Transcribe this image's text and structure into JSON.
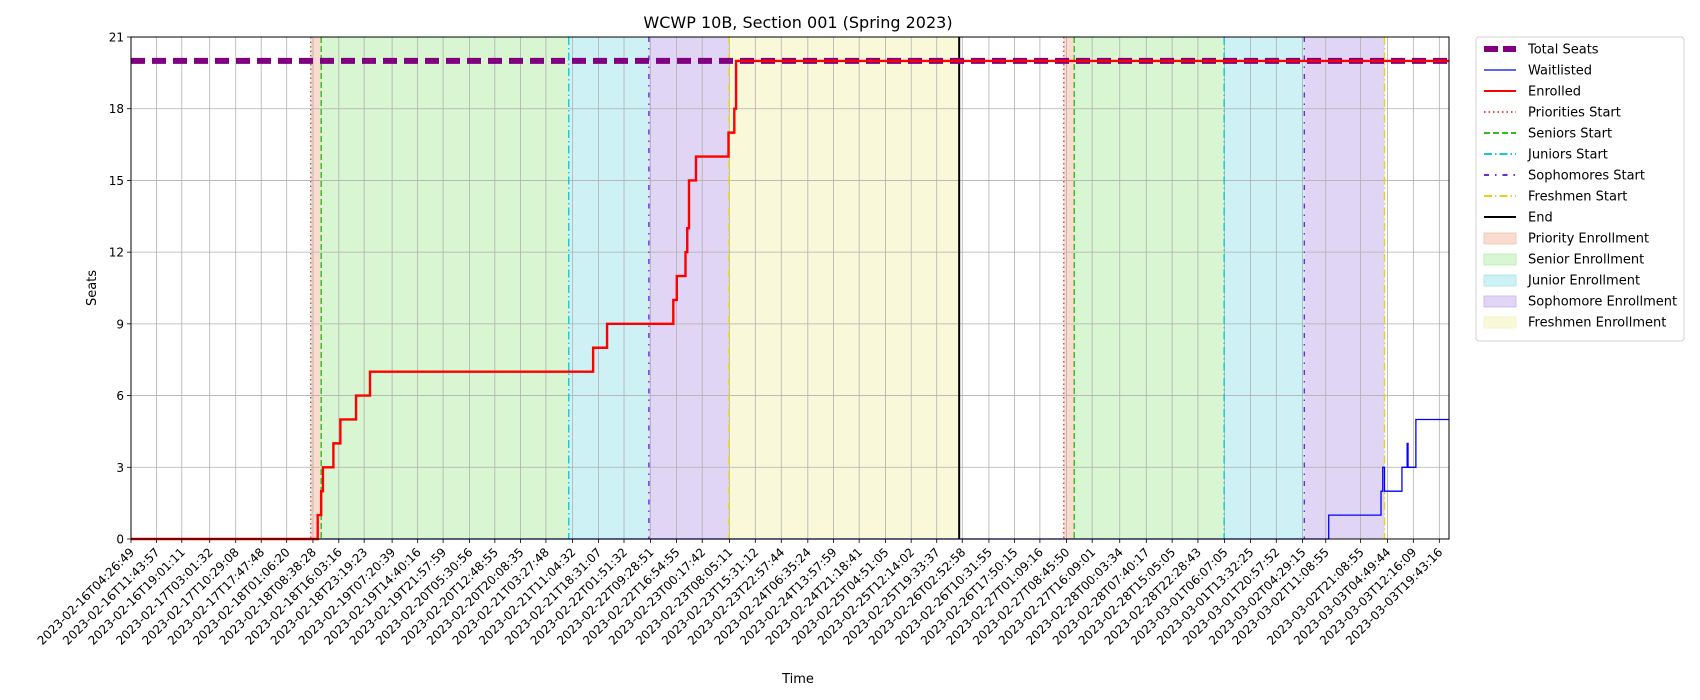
{
  "chart_data": {
    "type": "line",
    "title": "WCWP 10B, Section 001 (Spring 2023)",
    "xlabel": "Time",
    "ylabel": "Seats",
    "ylim": [
      0,
      21
    ],
    "yticks": [
      0,
      3,
      6,
      9,
      12,
      15,
      18,
      21
    ],
    "grid": true,
    "legend_position": "outside right, top",
    "xlim": [
      "2023-02-16T04:26:49",
      "2023-03-03T22:30:00"
    ],
    "x_tick_labels": [
      "2023-02-16T04:26:49",
      "2023-02-16T11:43:57",
      "2023-02-16T19:01:11",
      "2023-02-17T03:01:32",
      "2023-02-17T10:29:08",
      "2023-02-17T17:47:48",
      "2023-02-18T01:06:20",
      "2023-02-18T08:38:28",
      "2023-02-18T16:03:16",
      "2023-02-18T23:19:23",
      "2023-02-19T07:20:39",
      "2023-02-19T14:40:16",
      "2023-02-19T21:57:59",
      "2023-02-20T05:30:56",
      "2023-02-20T12:48:55",
      "2023-02-20T20:08:35",
      "2023-02-21T03:27:48",
      "2023-02-21T11:04:32",
      "2023-02-21T18:31:07",
      "2023-02-22T01:51:32",
      "2023-02-22T09:28:51",
      "2023-02-22T16:54:55",
      "2023-02-23T00:17:42",
      "2023-02-23T08:05:11",
      "2023-02-23T15:31:12",
      "2023-02-23T22:57:44",
      "2023-02-24T06:35:24",
      "2023-02-24T13:57:59",
      "2023-02-24T21:18:41",
      "2023-02-25T04:51:05",
      "2023-02-25T12:14:02",
      "2023-02-25T19:33:37",
      "2023-02-26T02:52:58",
      "2023-02-26T10:31:55",
      "2023-02-26T17:50:15",
      "2023-02-27T01:09:16",
      "2023-02-27T08:45:50",
      "2023-02-27T16:09:01",
      "2023-02-28T00:03:34",
      "2023-02-28T07:40:17",
      "2023-02-28T15:05:05",
      "2023-02-28T22:28:43",
      "2023-03-01T06:07:05",
      "2023-03-01T13:32:25",
      "2023-03-01T20:57:52",
      "2023-03-02T04:29:15",
      "2023-03-02T11:08:55",
      "2023-03-02T21:08:55",
      "2023-03-03T04:49:44",
      "2023-03-03T12:16:09",
      "2023-03-03T19:43:16"
    ],
    "spans": [
      {
        "name": "Priority Enrollment",
        "color": "#f4c0a8",
        "from": "2023-02-18T08:00:00",
        "to": "2023-02-18T11:00:00"
      },
      {
        "name": "Senior Enrollment",
        "color": "#b8eeac",
        "from": "2023-02-18T11:00:00",
        "to": "2023-02-21T10:00:00"
      },
      {
        "name": "Junior Enrollment",
        "color": "#a6e6ec",
        "from": "2023-02-21T10:00:00",
        "to": "2023-02-22T09:00:00"
      },
      {
        "name": "Sophomore Enrollment",
        "color": "#c9b2ec",
        "from": "2023-02-22T09:00:00",
        "to": "2023-02-23T08:00:00"
      },
      {
        "name": "Freshmen Enrollment",
        "color": "#f4f4bc",
        "from": "2023-02-23T08:00:00",
        "to": "2023-02-26T02:00:00"
      },
      {
        "name": "Priority Enrollment",
        "color": "#f4c0a8",
        "from": "2023-02-27T08:00:00",
        "to": "2023-02-27T11:00:00"
      },
      {
        "name": "Senior Enrollment",
        "color": "#b8eeac",
        "from": "2023-02-27T11:00:00",
        "to": "2023-03-01T06:00:00"
      },
      {
        "name": "Junior Enrollment",
        "color": "#a6e6ec",
        "from": "2023-03-01T06:00:00",
        "to": "2023-03-02T05:00:00"
      },
      {
        "name": "Sophomore Enrollment",
        "color": "#c9b2ec",
        "from": "2023-03-02T05:00:00",
        "to": "2023-03-03T04:00:00"
      }
    ],
    "vlines": [
      {
        "name": "Priorities Start",
        "color": "#e8463a",
        "style": "dotted",
        "x": "2023-02-18T08:00:00"
      },
      {
        "name": "Seniors Start",
        "color": "#33bb22",
        "style": "dashed",
        "x": "2023-02-18T11:00:00"
      },
      {
        "name": "Juniors Start",
        "color": "#1ac9d0",
        "style": "dashdot",
        "x": "2023-02-21T10:00:00"
      },
      {
        "name": "Sophomores Start",
        "color": "#6a28e0",
        "style": "loose",
        "x": "2023-02-22T09:00:00"
      },
      {
        "name": "Freshmen Start",
        "color": "#e8d020",
        "style": "dashdot",
        "x": "2023-02-23T08:00:00"
      },
      {
        "name": "End",
        "color": "#000000",
        "style": "solid",
        "x": "2023-02-26T02:00:00"
      },
      {
        "name": "Priorities Start",
        "color": "#e8463a",
        "style": "dotted",
        "x": "2023-02-27T08:00:00"
      },
      {
        "name": "Seniors Start",
        "color": "#33bb22",
        "style": "dashed",
        "x": "2023-02-27T11:00:00"
      },
      {
        "name": "Juniors Start",
        "color": "#1ac9d0",
        "style": "dashdot",
        "x": "2023-03-01T06:00:00"
      },
      {
        "name": "Sophomores Start",
        "color": "#6a28e0",
        "style": "loose",
        "x": "2023-03-02T05:00:00"
      },
      {
        "name": "Freshmen Start",
        "color": "#e8d020",
        "style": "dashdot",
        "x": "2023-03-03T04:00:00"
      }
    ],
    "series": [
      {
        "name": "Total Seats",
        "color": "#800080",
        "style": "thick-dashed",
        "points": [
          [
            "2023-02-16T04:26:49",
            20
          ],
          [
            "2023-02-23T08:30:00",
            20
          ],
          [
            "2023-03-03T22:30:00",
            20
          ]
        ]
      },
      {
        "name": "Waitlisted",
        "color": "#0000ff",
        "style": "step",
        "points": [
          [
            "2023-02-16T04:26:49",
            0
          ],
          [
            "2023-03-02T12:00:00",
            0
          ],
          [
            "2023-03-02T12:00:00",
            1
          ],
          [
            "2023-03-03T03:00:00",
            1
          ],
          [
            "2023-03-03T03:00:00",
            2
          ],
          [
            "2023-03-03T03:30:00",
            2
          ],
          [
            "2023-03-03T03:30:00",
            3
          ],
          [
            "2023-03-03T04:00:00",
            3
          ],
          [
            "2023-03-03T04:00:00",
            2
          ],
          [
            "2023-03-03T09:00:00",
            2
          ],
          [
            "2023-03-03T09:00:00",
            3
          ],
          [
            "2023-03-03T10:30:00",
            3
          ],
          [
            "2023-03-03T10:30:00",
            4
          ],
          [
            "2023-03-03T10:45:00",
            4
          ],
          [
            "2023-03-03T10:45:00",
            3
          ],
          [
            "2023-03-03T13:00:00",
            3
          ],
          [
            "2023-03-03T13:00:00",
            5
          ],
          [
            "2023-03-03T22:30:00",
            5
          ]
        ]
      },
      {
        "name": "Enrolled",
        "color": "#ff0000",
        "style": "step",
        "points": [
          [
            "2023-02-16T04:26:49",
            0
          ],
          [
            "2023-02-18T10:00:00",
            0
          ],
          [
            "2023-02-18T10:00:00",
            1
          ],
          [
            "2023-02-18T11:00:00",
            1
          ],
          [
            "2023-02-18T11:00:00",
            2
          ],
          [
            "2023-02-18T11:30:00",
            2
          ],
          [
            "2023-02-18T11:30:00",
            3
          ],
          [
            "2023-02-18T14:30:00",
            3
          ],
          [
            "2023-02-18T14:30:00",
            4
          ],
          [
            "2023-02-18T16:30:00",
            4
          ],
          [
            "2023-02-18T16:30:00",
            5
          ],
          [
            "2023-02-18T21:00:00",
            5
          ],
          [
            "2023-02-18T21:00:00",
            6
          ],
          [
            "2023-02-19T01:00:00",
            6
          ],
          [
            "2023-02-19T01:00:00",
            7
          ],
          [
            "2023-02-21T17:00:00",
            7
          ],
          [
            "2023-02-21T17:00:00",
            8
          ],
          [
            "2023-02-21T21:00:00",
            8
          ],
          [
            "2023-02-21T21:00:00",
            9
          ],
          [
            "2023-02-22T16:00:00",
            9
          ],
          [
            "2023-02-22T16:00:00",
            10
          ],
          [
            "2023-02-22T17:00:00",
            10
          ],
          [
            "2023-02-22T17:00:00",
            11
          ],
          [
            "2023-02-22T19:30:00",
            11
          ],
          [
            "2023-02-22T19:30:00",
            12
          ],
          [
            "2023-02-22T20:00:00",
            12
          ],
          [
            "2023-02-22T20:00:00",
            13
          ],
          [
            "2023-02-22T20:30:00",
            13
          ],
          [
            "2023-02-22T20:30:00",
            15
          ],
          [
            "2023-02-22T22:30:00",
            15
          ],
          [
            "2023-02-22T22:30:00",
            16
          ],
          [
            "2023-02-23T07:50:00",
            16
          ],
          [
            "2023-02-23T07:50:00",
            17
          ],
          [
            "2023-02-23T09:30:00",
            17
          ],
          [
            "2023-02-23T09:30:00",
            18
          ],
          [
            "2023-02-23T10:00:00",
            18
          ],
          [
            "2023-02-23T10:00:00",
            20
          ],
          [
            "2023-03-03T22:30:00",
            20
          ]
        ]
      }
    ],
    "legend": [
      {
        "label": "Total Seats",
        "kind": "line",
        "color": "#800080",
        "style": "thick-dashed"
      },
      {
        "label": "Waitlisted",
        "kind": "line",
        "color": "#0000ff",
        "style": "solid-thin"
      },
      {
        "label": "Enrolled",
        "kind": "line",
        "color": "#ff0000",
        "style": "solid"
      },
      {
        "label": "Priorities Start",
        "kind": "line",
        "color": "#e8463a",
        "style": "dotted"
      },
      {
        "label": "Seniors Start",
        "kind": "line",
        "color": "#33bb22",
        "style": "dashed"
      },
      {
        "label": "Juniors Start",
        "kind": "line",
        "color": "#1ac9d0",
        "style": "dashdot"
      },
      {
        "label": "Sophomores Start",
        "kind": "line",
        "color": "#6a28e0",
        "style": "loose"
      },
      {
        "label": "Freshmen Start",
        "kind": "line",
        "color": "#e8d020",
        "style": "dashdot"
      },
      {
        "label": "End",
        "kind": "line",
        "color": "#000000",
        "style": "solid"
      },
      {
        "label": "Priority Enrollment",
        "kind": "patch",
        "color": "#f4c0a8"
      },
      {
        "label": "Senior Enrollment",
        "kind": "patch",
        "color": "#b8eeac"
      },
      {
        "label": "Junior Enrollment",
        "kind": "patch",
        "color": "#a6e6ec"
      },
      {
        "label": "Sophomore Enrollment",
        "kind": "patch",
        "color": "#c9b2ec"
      },
      {
        "label": "Freshmen Enrollment",
        "kind": "patch",
        "color": "#f4f4bc"
      }
    ]
  }
}
